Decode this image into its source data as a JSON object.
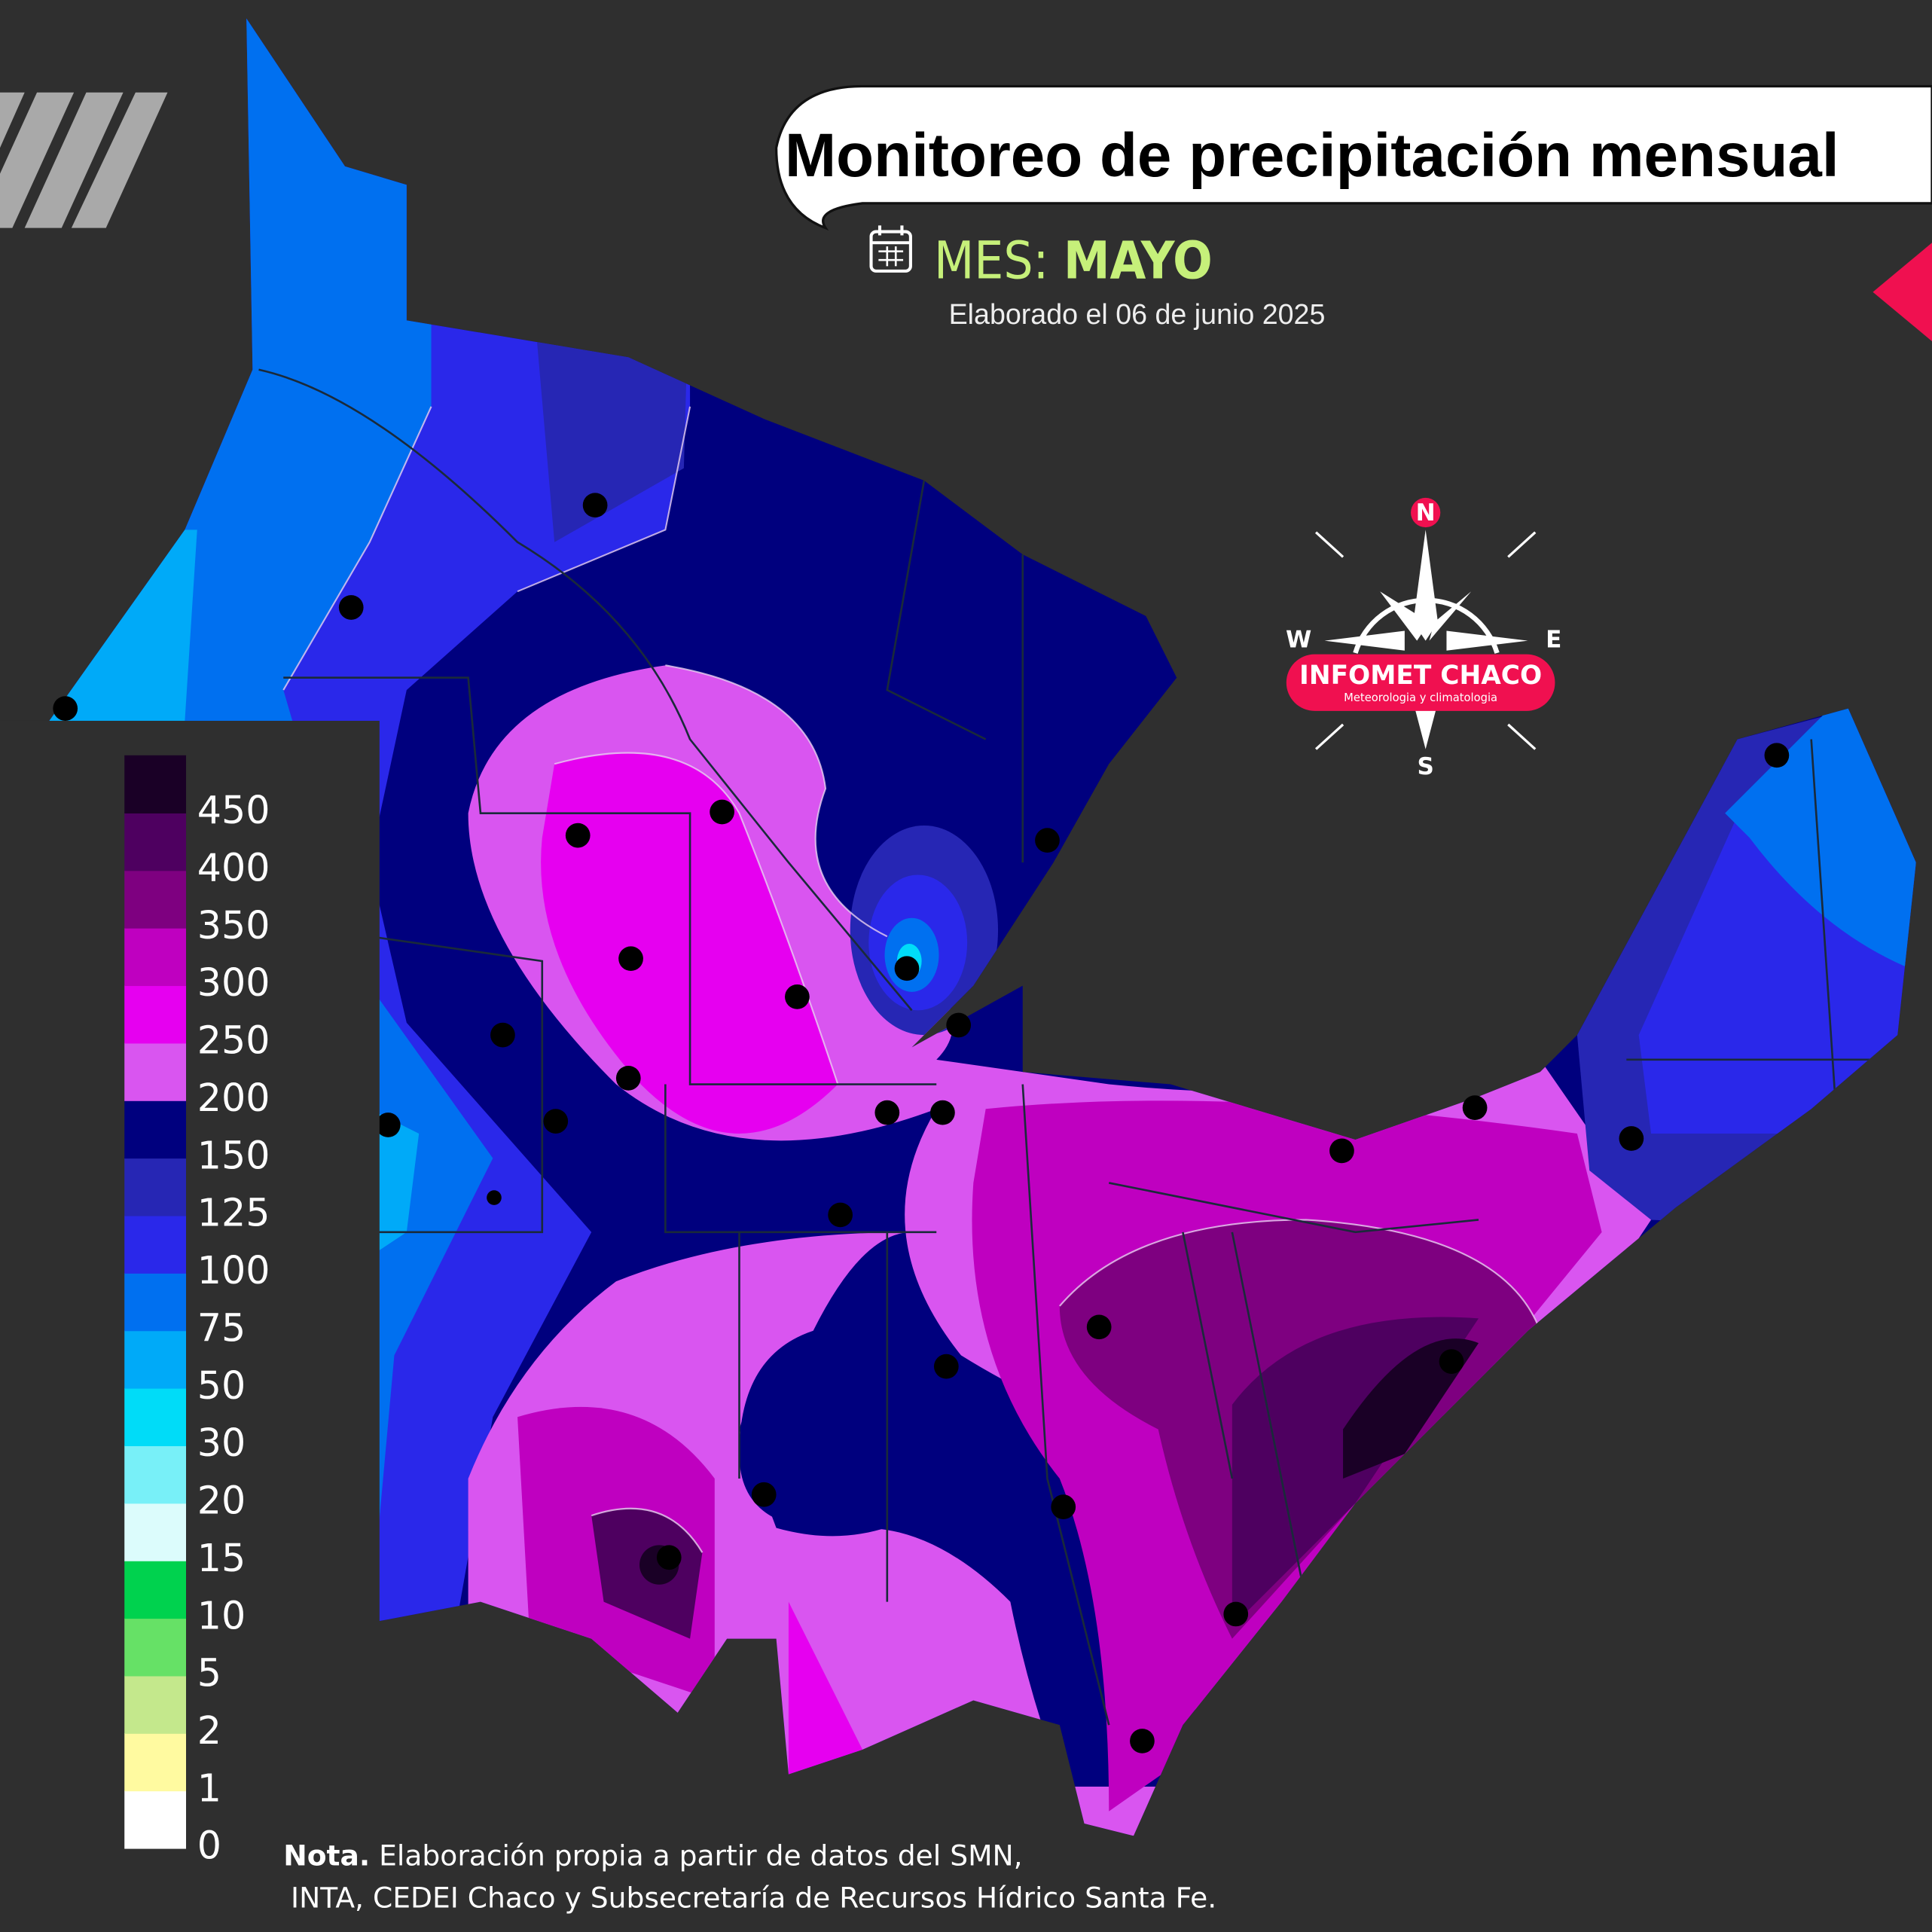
{
  "header": {
    "title": "Monitoreo de precipitación  mensual",
    "month_label": "MES:",
    "month": "MAYO",
    "date": "Elaborado el 06 de junio  2025"
  },
  "legend": {
    "ticks": [
      0,
      1,
      2,
      5,
      10,
      15,
      20,
      30,
      50,
      75,
      100,
      125,
      150,
      200,
      250,
      300,
      350,
      400,
      450
    ],
    "colors": [
      "#ffffff",
      "#fffaa0",
      "#c4e88c",
      "#66e166",
      "#00d24e",
      "#dcfcfc",
      "#78f0f8",
      "#00dcf8",
      "#00aaf8",
      "#0070f0",
      "#2a28ea",
      "#2626b4",
      "#00007e",
      "#d955f0",
      "#e600f0",
      "#bf00c0",
      "#7e0080",
      "#4e0060",
      "#1a0026"
    ]
  },
  "compass": {
    "north": "N",
    "south": "S",
    "west": "W",
    "east": "E"
  },
  "logo": {
    "name": "INFOMET CHACO",
    "tagline": "Meteorologia y climatologia"
  },
  "note": {
    "label": "Nota.",
    "line1": "Elaboración propia a partir de datos del SMN,",
    "line2": "INTA, CEDEI Chaco y Subsecretaría de Recursos Hídrico Santa Fe."
  }
}
